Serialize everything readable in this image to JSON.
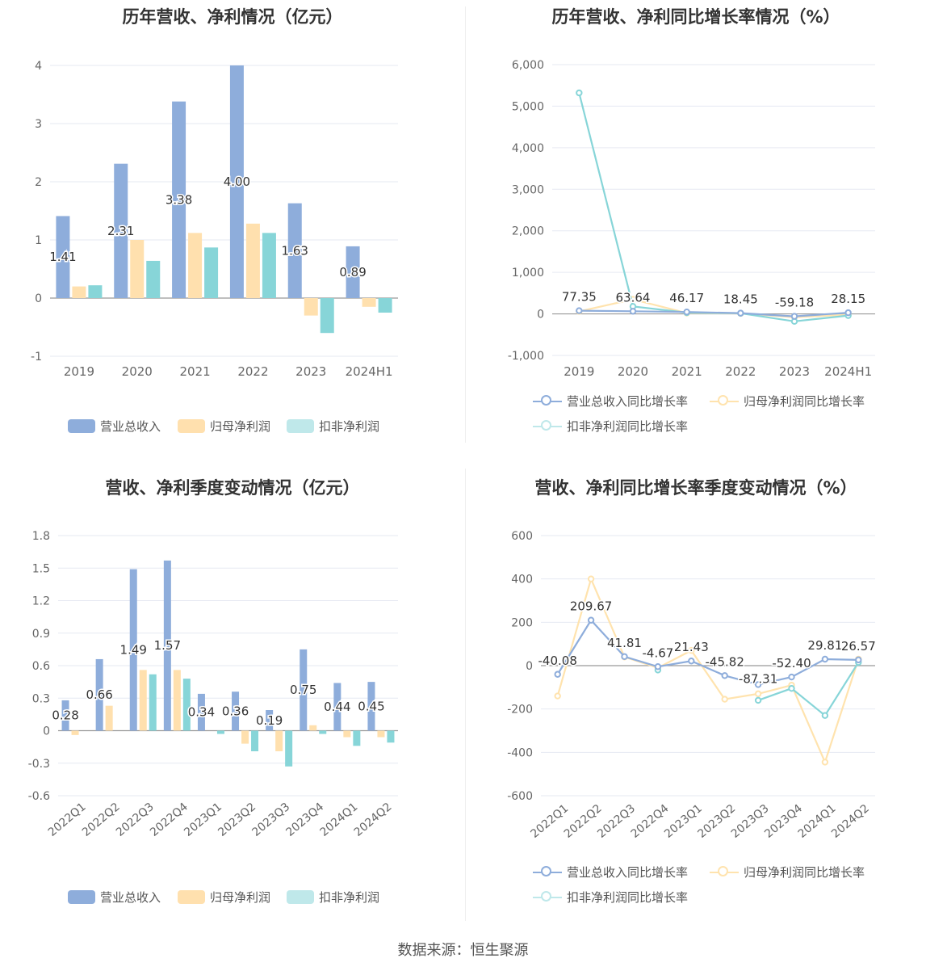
{
  "footer": "数据来源：恒生聚源",
  "colors": {
    "revenue": "#8EADDB",
    "parent": "#FFE0AE",
    "deducted": "#87D5D8",
    "revenue_line": "#8EADDB",
    "parent_line": "#FFE3AE",
    "deducted_line": "#87D5D8"
  },
  "legend": {
    "bars": [
      "营业总收入",
      "归母净利润",
      "扣非净利润"
    ],
    "lines": [
      "营业总收入同比增长率",
      "归母净利润同比增长率",
      "扣非净利润同比增长率"
    ]
  },
  "chart_data": [
    {
      "type": "bar",
      "title": "历年营收、净利情况（亿元）",
      "categories": [
        "2019",
        "2020",
        "2021",
        "2022",
        "2023",
        "2024H1"
      ],
      "ylim": [
        -1,
        4
      ],
      "yticks": [
        "-1",
        "0",
        "1",
        "2",
        "3",
        "4"
      ],
      "ytick_values": [
        -1,
        0,
        1,
        2,
        3,
        4
      ],
      "grid": true,
      "legend_position": "bottom",
      "series": [
        {
          "name": "营业总收入",
          "values": [
            1.41,
            2.31,
            3.38,
            4.0,
            1.63,
            0.89
          ]
        },
        {
          "name": "归母净利润",
          "values": [
            0.2,
            1.0,
            1.12,
            1.28,
            -0.3,
            -0.15
          ]
        },
        {
          "name": "扣非净利润",
          "values": [
            0.22,
            0.64,
            0.87,
            1.12,
            -0.6,
            -0.25
          ]
        }
      ],
      "data_labels": [
        "1.41",
        "2.31",
        "3.38",
        "4.00",
        "1.63",
        "0.89"
      ]
    },
    {
      "type": "line",
      "title": "历年营收、净利同比增长率情况（%）",
      "categories": [
        "2019",
        "2020",
        "2021",
        "2022",
        "2023",
        "2024H1"
      ],
      "ylim": [
        -1000,
        6000
      ],
      "yticks": [
        "-1,000",
        "0",
        "1,000",
        "2,000",
        "3,000",
        "4,000",
        "5,000",
        "6,000"
      ],
      "ytick_values": [
        -1000,
        0,
        1000,
        2000,
        3000,
        4000,
        5000,
        6000
      ],
      "grid": true,
      "legend_position": "bottom",
      "series": [
        {
          "name": "营业总收入同比增长率",
          "values": [
            77.35,
            63.64,
            46.17,
            18.45,
            -59.18,
            28.15
          ]
        },
        {
          "name": "归母净利润同比增长率",
          "values": [
            60,
            350,
            20,
            10,
            -80,
            -20
          ]
        },
        {
          "name": "扣非净利润同比增长率",
          "values": [
            5320,
            180,
            30,
            15,
            -180,
            -40
          ]
        }
      ],
      "data_labels": [
        "77.35",
        "63.64",
        "46.17",
        "18.45",
        "-59.18",
        "28.15"
      ]
    },
    {
      "type": "bar",
      "title": "营收、净利季度变动情况（亿元）",
      "categories": [
        "2022Q1",
        "2022Q2",
        "2022Q3",
        "2022Q4",
        "2023Q1",
        "2023Q2",
        "2023Q3",
        "2023Q4",
        "2024Q1",
        "2024Q2"
      ],
      "ylim": [
        -0.6,
        1.8
      ],
      "yticks": [
        "-0.6",
        "-0.3",
        "0",
        "0.3",
        "0.6",
        "0.9",
        "1.2",
        "1.5",
        "1.8"
      ],
      "ytick_values": [
        -0.6,
        -0.3,
        0,
        0.3,
        0.6,
        0.9,
        1.2,
        1.5,
        1.8
      ],
      "grid": true,
      "legend_position": "bottom",
      "series": [
        {
          "name": "营业总收入",
          "values": [
            0.28,
            0.66,
            1.49,
            1.57,
            0.34,
            0.36,
            0.19,
            0.75,
            0.44,
            0.45
          ]
        },
        {
          "name": "归母净利润",
          "values": [
            -0.04,
            0.23,
            0.56,
            0.56,
            0,
            -0.12,
            -0.19,
            0.05,
            -0.06,
            -0.06
          ]
        },
        {
          "name": "扣非净利润",
          "values": [
            0,
            0,
            0.52,
            0.48,
            -0.03,
            -0.19,
            -0.33,
            -0.03,
            -0.14,
            -0.11
          ]
        }
      ],
      "data_labels": [
        "0.28",
        "0.66",
        "1.49",
        "1.57",
        "0.34",
        "0.36",
        "0.19",
        "0.75",
        "0.44",
        "0.45"
      ]
    },
    {
      "type": "line",
      "title": "营收、净利同比增长率季度变动情况（%）",
      "categories": [
        "2022Q1",
        "2022Q2",
        "2022Q3",
        "2022Q4",
        "2023Q1",
        "2023Q2",
        "2023Q3",
        "2023Q4",
        "2024Q1",
        "2024Q2"
      ],
      "ylim": [
        -600,
        600
      ],
      "yticks": [
        "-600",
        "-400",
        "-200",
        "0",
        "200",
        "400",
        "600"
      ],
      "ytick_values": [
        -600,
        -400,
        -200,
        0,
        200,
        400,
        600
      ],
      "grid": true,
      "legend_position": "bottom",
      "series": [
        {
          "name": "营业总收入同比增长率",
          "values": [
            -40.08,
            209.67,
            41.81,
            -4.67,
            21.43,
            -45.82,
            -87.31,
            -52.4,
            29.81,
            26.57
          ]
        },
        {
          "name": "归母净利润同比增长率",
          "values": [
            -140,
            400,
            40,
            -10,
            70,
            -155,
            -130,
            -90,
            -445,
            30
          ]
        },
        {
          "name": "扣非净利润同比增长率",
          "values": [
            null,
            null,
            null,
            -20,
            null,
            null,
            -160,
            -105,
            -230,
            15
          ]
        }
      ],
      "data_labels": [
        "-40.08",
        "209.67",
        "41.81",
        "-4.67",
        "21.43",
        "-45.82",
        "-87.31",
        "-52.40",
        "29.81",
        "26.57"
      ]
    }
  ]
}
